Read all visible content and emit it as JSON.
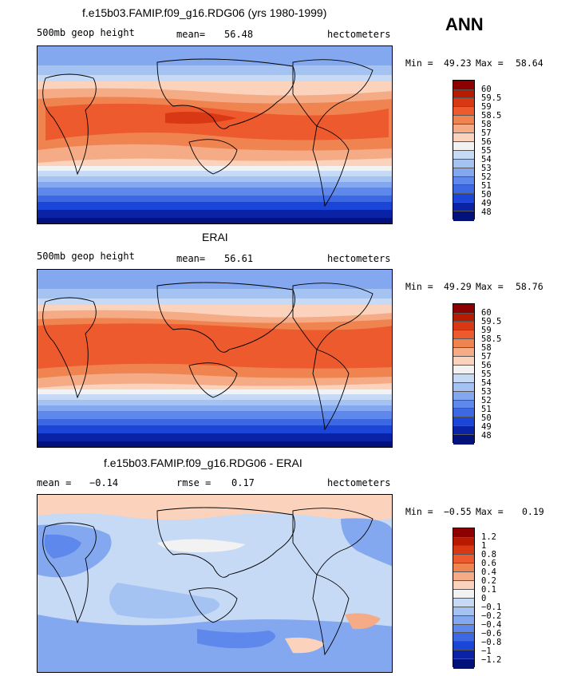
{
  "season": "ANN",
  "panels": [
    {
      "title": "f.e15b03.FAMIP.f09_g16.RDG06 (yrs 1980-1999)",
      "variable": "500mb geop height",
      "stat_label": "mean=",
      "stat_value": "56.48",
      "units": "hectometers",
      "min_label": "Min =",
      "min_value": "49.23",
      "max_label": "Max =",
      "max_value": "58.64",
      "colorbar_labels": [
        "60",
        "59.5",
        "59",
        "58.5",
        "58",
        "57",
        "56",
        "55",
        "54",
        "53",
        "52",
        "51",
        "50",
        "49",
        "48"
      ]
    },
    {
      "title": "ERAI",
      "variable": "500mb geop height",
      "stat_label": "mean=",
      "stat_value": "56.61",
      "units": "hectometers",
      "min_label": "Min =",
      "min_value": "49.29",
      "max_label": "Max =",
      "max_value": "58.76",
      "colorbar_labels": [
        "60",
        "59.5",
        "59",
        "58.5",
        "58",
        "57",
        "56",
        "55",
        "54",
        "53",
        "52",
        "51",
        "50",
        "49",
        "48"
      ]
    },
    {
      "title": "f.e15b03.FAMIP.f09_g16.RDG06 - ERAI",
      "stat1_label": "mean =",
      "stat1_value": "−0.14",
      "stat2_label": "rmse =",
      "stat2_value": "0.17",
      "units": "hectometers",
      "min_label": "Min =",
      "min_value": "−0.55",
      "max_label": "Max =",
      "max_value": "0.19",
      "colorbar_labels": [
        "1.2",
        "1",
        "0.8",
        "0.6",
        "0.4",
        "0.2",
        "0.1",
        "0",
        "−0.1",
        "−0.2",
        "−0.4",
        "−0.6",
        "−0.8",
        "−1",
        "−1.2"
      ]
    }
  ],
  "colors": {
    "field_scale": [
      "#8c0000",
      "#b81a00",
      "#d93814",
      "#ec5a2d",
      "#f08451",
      "#f5ab85",
      "#fbd3bd",
      "#f2f2f2",
      "#c6d9f5",
      "#a4c2f2",
      "#84a8f0",
      "#5f88ec",
      "#3d68e3",
      "#1a45d6",
      "#0a22a6",
      "#03127a"
    ],
    "diff_scale": [
      "#8c0000",
      "#b81a00",
      "#d93814",
      "#ec5a2d",
      "#f08451",
      "#f5ab85",
      "#fbd3bd",
      "#f2f2f2",
      "#c6d9f5",
      "#a4c2f2",
      "#84a8f0",
      "#5f88ec",
      "#3d68e3",
      "#1a45d6",
      "#0a22a6",
      "#03127a"
    ]
  }
}
